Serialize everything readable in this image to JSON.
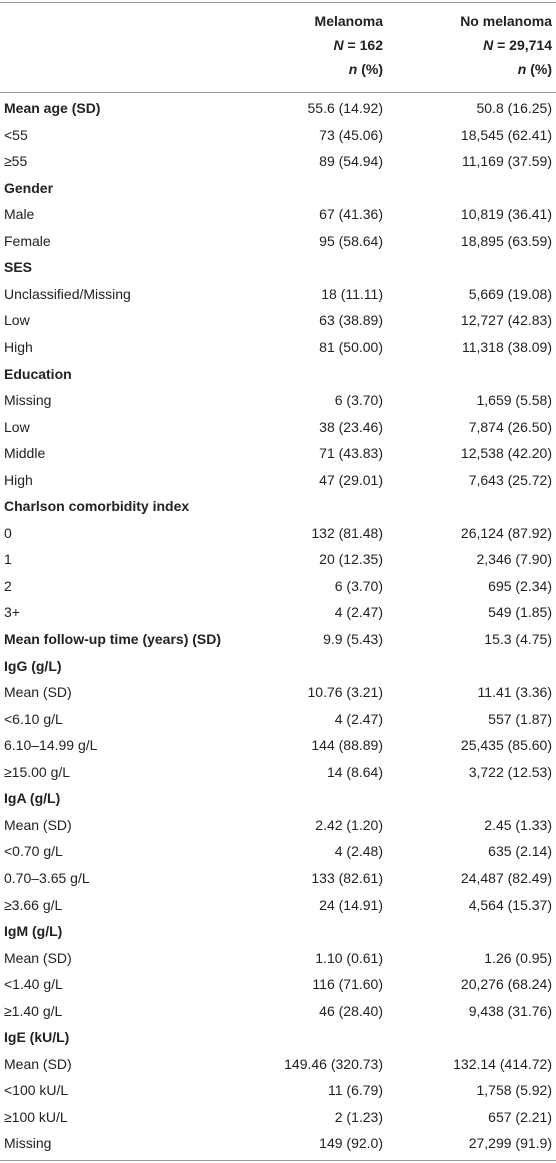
{
  "table": {
    "header": [
      [
        "Melanoma",
        "N = 162",
        "n (%)"
      ],
      [
        "No melanoma",
        "N = 29,714",
        "n (%)"
      ]
    ],
    "rows": [
      {
        "cells": [
          "Mean age (SD)",
          "55.6 (14.92)",
          "50.8 (16.25)"
        ],
        "bold": true
      },
      {
        "cells": [
          "<55",
          "73 (45.06)",
          "18,545 (62.41)"
        ]
      },
      {
        "cells": [
          "≥55",
          "89 (54.94)",
          "11,169 (37.59)"
        ]
      },
      {
        "cells": [
          "Gender"
        ],
        "bold": true
      },
      {
        "cells": [
          "Male",
          "67 (41.36)",
          "10,819 (36.41)"
        ]
      },
      {
        "cells": [
          "Female",
          "95 (58.64)",
          "18,895 (63.59)"
        ]
      },
      {
        "cells": [
          "SES"
        ],
        "bold": true
      },
      {
        "cells": [
          "Unclassified/Missing",
          "18 (11.11)",
          "5,669 (19.08)"
        ]
      },
      {
        "cells": [
          "Low",
          "63 (38.89)",
          "12,727 (42.83)"
        ]
      },
      {
        "cells": [
          "High",
          "81 (50.00)",
          "11,318 (38.09)"
        ]
      },
      {
        "cells": [
          "Education"
        ],
        "bold": true
      },
      {
        "cells": [
          "Missing",
          "6 (3.70)",
          "1,659 (5.58)"
        ]
      },
      {
        "cells": [
          "Low",
          "38 (23.46)",
          "7,874 (26.50)"
        ]
      },
      {
        "cells": [
          "Middle",
          "71 (43.83)",
          "12,538 (42.20)"
        ]
      },
      {
        "cells": [
          "High",
          "47 (29.01)",
          "7,643 (25.72)"
        ]
      },
      {
        "cells": [
          "Charlson comorbidity index"
        ],
        "bold": true
      },
      {
        "cells": [
          "0",
          "132 (81.48)",
          "26,124 (87.92)"
        ]
      },
      {
        "cells": [
          "1",
          "20 (12.35)",
          "2,346 (7.90)"
        ]
      },
      {
        "cells": [
          "2",
          "6 (3.70)",
          "695 (2.34)"
        ]
      },
      {
        "cells": [
          "3+",
          "4 (2.47)",
          "549 (1.85)"
        ]
      },
      {
        "cells": [
          "Mean follow-up time (years) (SD)",
          "9.9 (5.43)",
          "15.3 (4.75)"
        ],
        "bold": true
      },
      {
        "cells": [
          "IgG (g/L)"
        ],
        "bold": true
      },
      {
        "cells": [
          "Mean (SD)",
          "10.76 (3.21)",
          "11.41 (3.36)"
        ]
      },
      {
        "cells": [
          "<6.10 g/L",
          "4 (2.47)",
          "557 (1.87)"
        ]
      },
      {
        "cells": [
          "6.10–14.99 g/L",
          "144 (88.89)",
          "25,435 (85.60)"
        ]
      },
      {
        "cells": [
          "≥15.00 g/L",
          "14 (8.64)",
          "3,722 (12.53)"
        ]
      },
      {
        "cells": [
          "IgA (g/L)"
        ],
        "bold": true
      },
      {
        "cells": [
          "Mean (SD)",
          "2.42 (1.20)",
          "2.45 (1.33)"
        ]
      },
      {
        "cells": [
          "<0.70 g/L",
          "4 (2.48)",
          "635 (2.14)"
        ]
      },
      {
        "cells": [
          "0.70–3.65 g/L",
          "133 (82.61)",
          "24,487 (82.49)"
        ]
      },
      {
        "cells": [
          "≥3.66 g/L",
          "24 (14.91)",
          "4,564 (15.37)"
        ]
      },
      {
        "cells": [
          "IgM (g/L)"
        ],
        "bold": true
      },
      {
        "cells": [
          "Mean (SD)",
          "1.10 (0.61)",
          "1.26 (0.95)"
        ]
      },
      {
        "cells": [
          "<1.40 g/L",
          "116 (71.60)",
          "20,276 (68.24)"
        ]
      },
      {
        "cells": [
          "≥1.40 g/L",
          "46 (28.40)",
          "9,438 (31.76)"
        ]
      },
      {
        "cells": [
          "IgE (kU/L)"
        ],
        "bold": true
      },
      {
        "cells": [
          "Mean (SD)",
          "149.46 (320.73)",
          "132.14 (414.72)"
        ]
      },
      {
        "cells": [
          "<100 kU/L",
          "11 (6.79)",
          "1,758 (5.92)"
        ]
      },
      {
        "cells": [
          "≥100 kU/L",
          "2 (1.23)",
          "657 (2.21)"
        ]
      },
      {
        "cells": [
          "Missing",
          "149 (92.0)",
          "27,299 (91.9)"
        ]
      }
    ]
  }
}
